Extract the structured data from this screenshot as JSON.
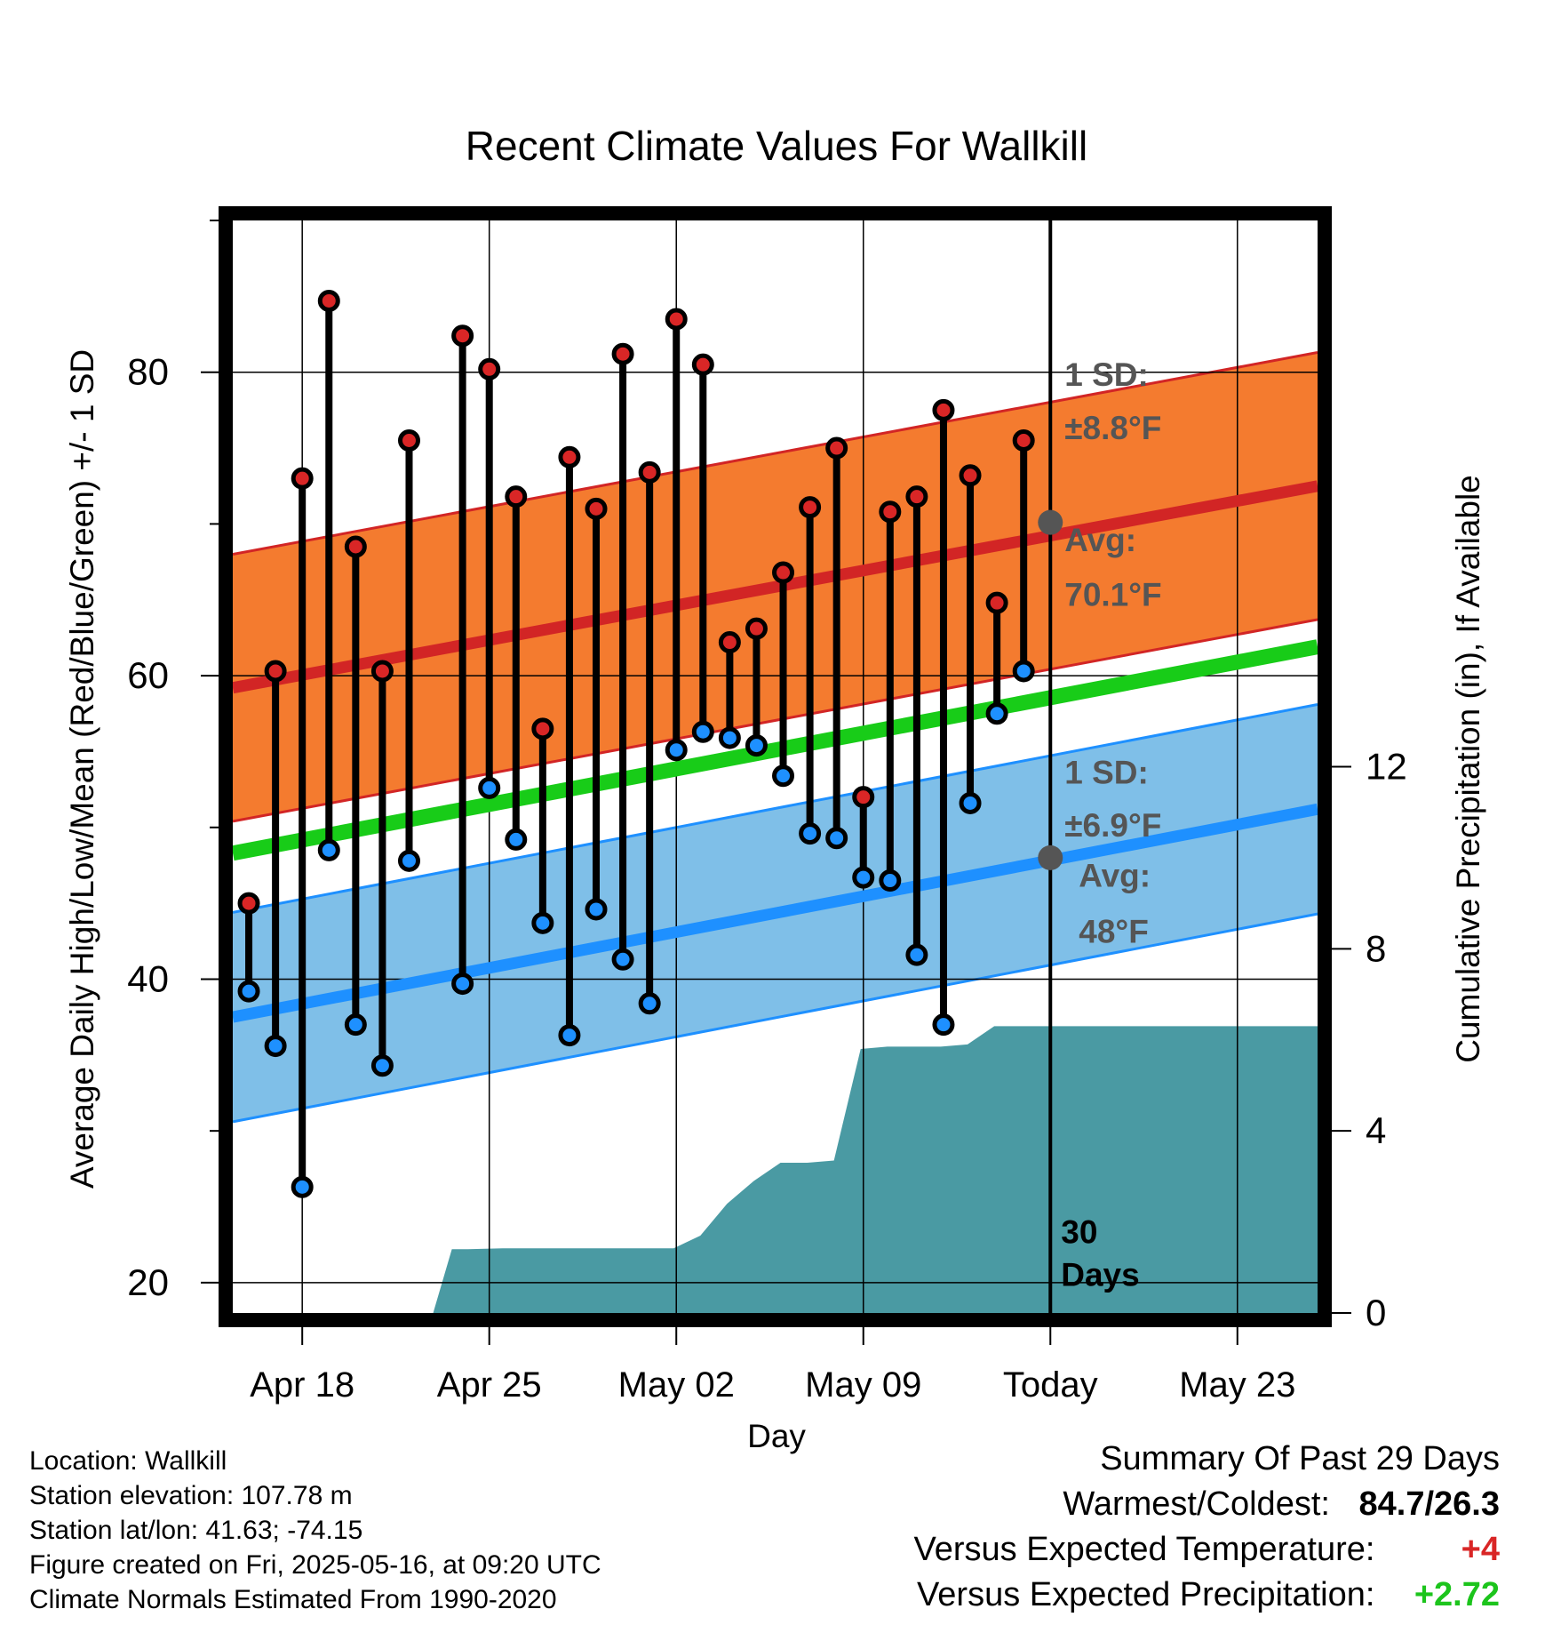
{
  "chart_data": {
    "type": "line",
    "title": "Recent Climate Values For Wallkill",
    "xlabel": "Day",
    "ylabel": "Average Daily High/Low/Mean (Red/Blue/Green) +/- 1 SD",
    "y2label": "Cumulative Precipitation (in), If Available",
    "ylim": [
      18,
      90
    ],
    "y2lim": [
      0,
      24
    ],
    "yticks": [
      20,
      40,
      60,
      80
    ],
    "y2ticks": [
      0,
      4,
      8,
      12
    ],
    "xtick_labels": [
      "Apr 18",
      "Apr 25",
      "May 02",
      "May 09",
      "Today",
      "May 23"
    ],
    "xtick_day_index": [
      0,
      7,
      14,
      21,
      28,
      35
    ],
    "x_range_day_index": [
      -2.6,
      38
    ],
    "grid": true,
    "days": [
      -2,
      -1,
      0,
      1,
      2,
      3,
      4,
      5,
      6,
      7,
      8,
      9,
      10,
      11,
      12,
      13,
      14,
      15,
      16,
      17,
      18,
      19,
      20,
      21,
      22,
      23,
      24,
      25,
      26,
      27
    ],
    "highs": [
      45,
      60.3,
      73,
      84.7,
      68.5,
      60.3,
      75.5,
      null,
      82.4,
      80.2,
      71.8,
      56.5,
      74.4,
      71,
      81.2,
      73.4,
      83.5,
      80.5,
      62.2,
      63.1,
      66.8,
      71.1,
      75,
      52,
      70.8,
      71.8,
      77.5,
      73.2,
      64.8,
      75.5
    ],
    "lows": [
      39.2,
      35.6,
      26.3,
      48.5,
      37,
      34.3,
      47.8,
      null,
      39.7,
      52.6,
      49.2,
      43.7,
      36.3,
      44.6,
      41.3,
      38.4,
      55.1,
      56.3,
      55.9,
      55.4,
      53.4,
      49.6,
      49.3,
      46.7,
      46.5,
      41.6,
      37,
      51.6,
      57.5,
      60.3
    ],
    "normal_high": {
      "start": 59.2,
      "end": 72.5,
      "sd": 8.8,
      "today_avg": 70.1,
      "label_sd": "1 SD:",
      "label_sd_value": "±8.8°F",
      "label_avg": "Avg:",
      "label_avg_value": "70.1°F"
    },
    "normal_low": {
      "start": 37.5,
      "end": 51.2,
      "sd": 6.9,
      "today_avg": 48,
      "label_sd": "1 SD:",
      "label_sd_value": "±6.9°F",
      "label_avg": "Avg:",
      "label_avg_value": "48°F"
    },
    "normal_mean": {
      "start": 48.3,
      "end": 61.9
    },
    "precip_cumulative": [
      [
        4.9,
        0
      ],
      [
        5.6,
        1.4
      ],
      [
        6.2,
        1.4
      ],
      [
        7.5,
        1.42
      ],
      [
        13.9,
        1.42
      ],
      [
        14.9,
        1.7
      ],
      [
        15.9,
        2.4
      ],
      [
        16.9,
        2.9
      ],
      [
        17.9,
        3.3
      ],
      [
        18.9,
        3.3
      ],
      [
        19.9,
        3.35
      ],
      [
        20.9,
        5.8
      ],
      [
        21.9,
        5.85
      ],
      [
        22.9,
        5.85
      ],
      [
        23.9,
        5.85
      ],
      [
        24.9,
        5.9
      ],
      [
        25.9,
        6.3
      ],
      [
        26.9,
        6.3
      ],
      [
        38,
        6.3
      ]
    ],
    "today_label": "30\nDays",
    "today_label_line1": "30",
    "today_label_line2": "Days",
    "colors": {
      "high_marker": "#d92626",
      "low_marker": "#1e90ff",
      "high_band": "#f47b2f",
      "low_band": "#7fbfe8",
      "high_line": "#d22525",
      "low_line": "#1e90ff",
      "mean_line": "#18cc18",
      "precip": "#4a9aa3",
      "today_avg_dot": "#555555",
      "label_text": "#555555"
    }
  },
  "info": {
    "location": "Location: Wallkill",
    "elevation": "Station elevation: 107.78 m",
    "latlon": "Station lat/lon: 41.63; -74.15",
    "created": "Figure created on Fri, 2025-05-16, at 09:20 UTC",
    "normals": "Climate Normals Estimated From 1990-2020"
  },
  "summary": {
    "title": "Summary Of Past 29 Days",
    "warm_cold_label": "Warmest/Coldest:",
    "warm_cold_value": "84.7/26.3",
    "temp_label": "Versus Expected Temperature:",
    "temp_value": "+4",
    "precip_label": "Versus Expected Precipitation:",
    "precip_value": "+2.72",
    "temp_color": "#d92626",
    "precip_color": "#1cc41c"
  }
}
